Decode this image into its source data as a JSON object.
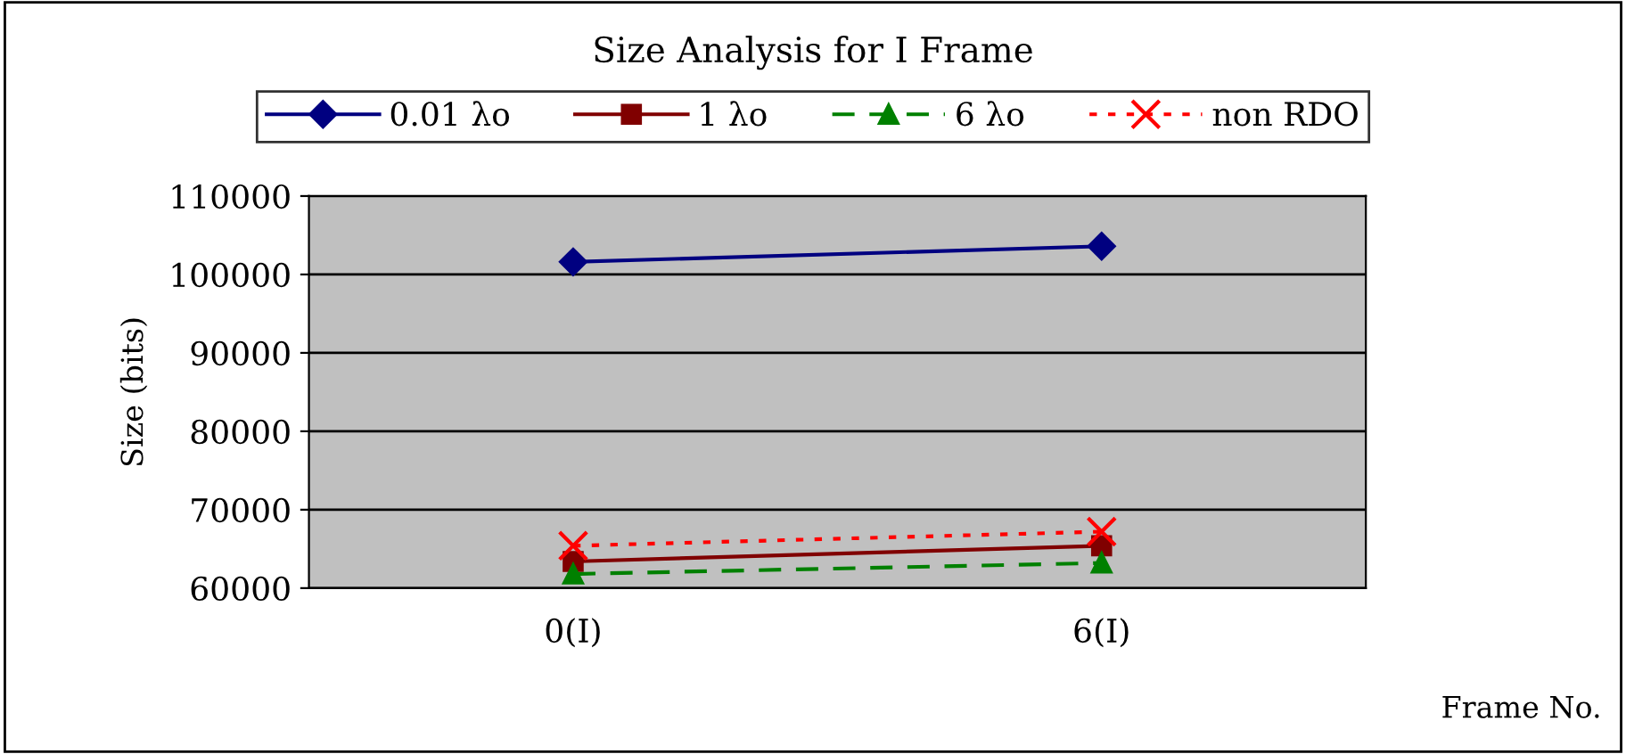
{
  "chart_data": {
    "type": "line",
    "title": "Size Analysis for I Frame",
    "xlabel": "Frame No.",
    "ylabel": "Size (bits)",
    "categories": [
      "0(I)",
      "6(I)"
    ],
    "series": [
      {
        "name": "0.01 λo",
        "color": "#000080",
        "values": [
          101600,
          103600
        ],
        "marker": "diamond",
        "line_style": "solid"
      },
      {
        "name": "1 λo",
        "color": "#800000",
        "values": [
          63400,
          65400
        ],
        "marker": "square",
        "line_style": "solid"
      },
      {
        "name": "6 λo",
        "color": "#008000",
        "values": [
          61800,
          63200
        ],
        "marker": "triangle",
        "line_style": "dashed"
      },
      {
        "name": "non RDO",
        "color": "#ff0000",
        "values": [
          65400,
          67200
        ],
        "marker": "cross",
        "line_style": "dotted"
      }
    ],
    "ylim": [
      60000,
      110000
    ],
    "yticks": [
      60000,
      70000,
      80000,
      90000,
      100000,
      110000
    ],
    "grid": "y",
    "legend": "top"
  }
}
